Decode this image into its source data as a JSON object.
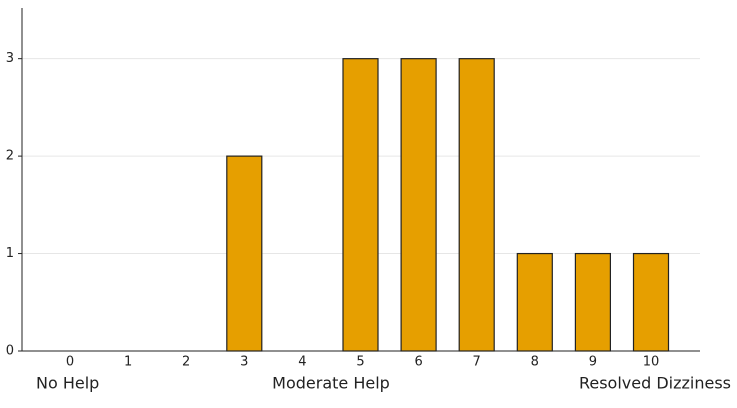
{
  "chart_data": {
    "type": "bar",
    "categories": [
      "0",
      "1",
      "2",
      "3",
      "4",
      "5",
      "6",
      "7",
      "8",
      "9",
      "10"
    ],
    "values": [
      0,
      0,
      0,
      2,
      0,
      3,
      3,
      3,
      1,
      1,
      1
    ],
    "color": "#e69f00",
    "ylim": [
      0,
      3.52
    ],
    "yticks": [
      0,
      1,
      2,
      3
    ],
    "grid": true,
    "annotations": [
      "No Help",
      "Moderate Help",
      "Resolved Dizziness"
    ]
  }
}
